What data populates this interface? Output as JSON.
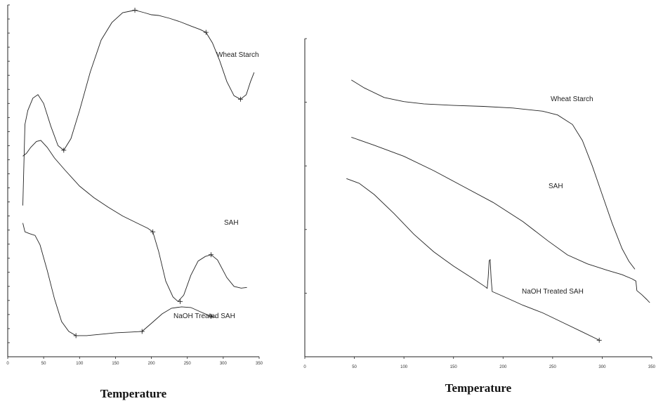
{
  "chart_data": [
    {
      "type": "line",
      "title": "",
      "xlabel": "Temperature",
      "ylabel": "",
      "xlim": [
        0,
        350
      ],
      "xticks": [
        0,
        50,
        100,
        150,
        200,
        250,
        300,
        350
      ],
      "yticks_count": 26,
      "grid": false,
      "series": [
        {
          "name": "Wheat Starch",
          "points": [
            [
              21,
              0.43
            ],
            [
              24,
              0.66
            ],
            [
              28,
              0.7
            ],
            [
              35,
              0.735
            ],
            [
              42,
              0.745
            ],
            [
              50,
              0.72
            ],
            [
              60,
              0.655
            ],
            [
              70,
              0.6
            ],
            [
              78,
              0.587
            ],
            [
              88,
              0.62
            ],
            [
              100,
              0.7
            ],
            [
              115,
              0.81
            ],
            [
              130,
              0.9
            ],
            [
              145,
              0.95
            ],
            [
              160,
              0.978
            ],
            [
              170,
              0.982
            ],
            [
              177,
              0.985
            ],
            [
              190,
              0.978
            ],
            [
              200,
              0.972
            ],
            [
              210,
              0.97
            ],
            [
              225,
              0.962
            ],
            [
              240,
              0.952
            ],
            [
              255,
              0.94
            ],
            [
              268,
              0.93
            ],
            [
              276,
              0.922
            ],
            [
              285,
              0.892
            ],
            [
              295,
              0.842
            ],
            [
              305,
              0.782
            ],
            [
              315,
              0.742
            ],
            [
              324,
              0.732
            ],
            [
              332,
              0.745
            ],
            [
              338,
              0.782
            ],
            [
              343,
              0.808
            ]
          ],
          "markers": [
            [
              78,
              0.587
            ],
            [
              177,
              0.985
            ],
            [
              276,
              0.922
            ],
            [
              324,
              0.732
            ]
          ]
        },
        {
          "name": "SAH",
          "points": [
            [
              21,
              0.57
            ],
            [
              26,
              0.578
            ],
            [
              32,
              0.595
            ],
            [
              40,
              0.612
            ],
            [
              46,
              0.615
            ],
            [
              55,
              0.595
            ],
            [
              65,
              0.565
            ],
            [
              80,
              0.53
            ],
            [
              100,
              0.485
            ],
            [
              120,
              0.452
            ],
            [
              140,
              0.425
            ],
            [
              160,
              0.4
            ],
            [
              180,
              0.38
            ],
            [
              195,
              0.365
            ],
            [
              202,
              0.355
            ],
            [
              210,
              0.3
            ],
            [
              220,
              0.215
            ],
            [
              230,
              0.17
            ],
            [
              237,
              0.157
            ],
            [
              245,
              0.175
            ],
            [
              255,
              0.232
            ],
            [
              265,
              0.272
            ],
            [
              275,
              0.285
            ],
            [
              283,
              0.29
            ],
            [
              292,
              0.275
            ],
            [
              305,
              0.225
            ],
            [
              315,
              0.2
            ],
            [
              325,
              0.195
            ],
            [
              333,
              0.197
            ]
          ],
          "markers": [
            [
              202,
              0.355
            ],
            [
              240,
              0.157
            ],
            [
              283,
              0.29
            ]
          ]
        },
        {
          "name": "NaOH Treated SAH",
          "points": [
            [
              21,
              0.38
            ],
            [
              24,
              0.355
            ],
            [
              30,
              0.35
            ],
            [
              38,
              0.345
            ],
            [
              45,
              0.318
            ],
            [
              55,
              0.245
            ],
            [
              65,
              0.165
            ],
            [
              75,
              0.1
            ],
            [
              85,
              0.072
            ],
            [
              95,
              0.06
            ],
            [
              110,
              0.06
            ],
            [
              130,
              0.064
            ],
            [
              150,
              0.068
            ],
            [
              170,
              0.07
            ],
            [
              187,
              0.072
            ],
            [
              200,
              0.095
            ],
            [
              215,
              0.122
            ],
            [
              228,
              0.138
            ],
            [
              242,
              0.142
            ],
            [
              255,
              0.14
            ],
            [
              268,
              0.128
            ],
            [
              283,
              0.115
            ],
            [
              290,
              0.112
            ]
          ],
          "markers": [
            [
              95,
              0.06
            ],
            [
              187,
              0.072
            ],
            [
              283,
              0.115
            ]
          ]
        }
      ]
    },
    {
      "type": "line",
      "title": "",
      "xlabel": "Temperature",
      "ylabel": "",
      "xlim": [
        0,
        350
      ],
      "xticks": [
        0,
        50,
        100,
        150,
        200,
        250,
        300,
        350
      ],
      "yticks_count": 6,
      "grid": false,
      "series": [
        {
          "name": "Wheat Starch",
          "points": [
            [
              47,
              0.87
            ],
            [
              60,
              0.845
            ],
            [
              80,
              0.815
            ],
            [
              100,
              0.802
            ],
            [
              120,
              0.795
            ],
            [
              150,
              0.79
            ],
            [
              180,
              0.787
            ],
            [
              210,
              0.782
            ],
            [
              240,
              0.772
            ],
            [
              255,
              0.76
            ],
            [
              270,
              0.73
            ],
            [
              280,
              0.68
            ],
            [
              290,
              0.6
            ],
            [
              300,
              0.51
            ],
            [
              310,
              0.42
            ],
            [
              320,
              0.34
            ],
            [
              327,
              0.3
            ],
            [
              333,
              0.275
            ]
          ],
          "markers": []
        },
        {
          "name": "SAH",
          "points": [
            [
              47,
              0.69
            ],
            [
              70,
              0.665
            ],
            [
              100,
              0.63
            ],
            [
              130,
              0.585
            ],
            [
              160,
              0.535
            ],
            [
              190,
              0.485
            ],
            [
              220,
              0.425
            ],
            [
              245,
              0.365
            ],
            [
              265,
              0.32
            ],
            [
              285,
              0.292
            ],
            [
              305,
              0.272
            ],
            [
              320,
              0.258
            ],
            [
              330,
              0.245
            ],
            [
              334,
              0.238
            ],
            [
              335,
              0.208
            ],
            [
              340,
              0.195
            ],
            [
              345,
              0.18
            ],
            [
              348,
              0.17
            ]
          ],
          "markers": []
        },
        {
          "name": "NaOH Treated SAH",
          "points": [
            [
              42,
              0.56
            ],
            [
              55,
              0.545
            ],
            [
              70,
              0.51
            ],
            [
              90,
              0.45
            ],
            [
              110,
              0.385
            ],
            [
              130,
              0.33
            ],
            [
              150,
              0.285
            ],
            [
              170,
              0.245
            ],
            [
              182,
              0.22
            ],
            [
              184,
              0.215
            ],
            [
              185,
              0.25
            ],
            [
              186,
              0.302
            ],
            [
              187,
              0.305
            ],
            [
              188,
              0.245
            ],
            [
              189,
              0.205
            ],
            [
              200,
              0.19
            ],
            [
              220,
              0.162
            ],
            [
              240,
              0.138
            ],
            [
              260,
              0.108
            ],
            [
              280,
              0.078
            ],
            [
              297,
              0.052
            ]
          ],
          "markers": [
            [
              297,
              0.052
            ]
          ]
        }
      ]
    }
  ]
}
